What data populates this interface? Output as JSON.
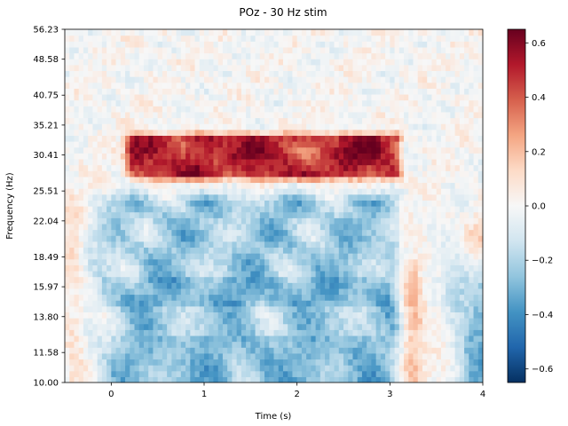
{
  "chart_data": {
    "type": "heatmap",
    "title": "POz - 30 Hz stim",
    "xlabel": "Time (s)",
    "ylabel": "Frequency (Hz)",
    "x_range": [
      -0.5,
      4.0
    ],
    "y_range": [
      10.0,
      56.23
    ],
    "y_scale": "log",
    "x_ticks": [
      0,
      1,
      2,
      3,
      4
    ],
    "x_tick_labels": [
      "0",
      "1",
      "2",
      "3",
      "4"
    ],
    "y_ticks": [
      10.0,
      11.58,
      13.8,
      15.97,
      18.49,
      22.04,
      25.51,
      30.41,
      35.21,
      40.75,
      48.58,
      56.23
    ],
    "y_tick_labels": [
      "10.00",
      "11.58",
      "13.80",
      "15.97",
      "18.49",
      "22.04",
      "25.51",
      "30.41",
      "35.21",
      "40.75",
      "48.58",
      "56.23"
    ],
    "colormap": "RdBu_r",
    "vmin": -0.65,
    "vmax": 0.65,
    "colorbar_ticks": [
      -0.6,
      -0.4,
      -0.2,
      0.0,
      0.2,
      0.4,
      0.6
    ],
    "colorbar_tick_labels": [
      "−0.6",
      "−0.4",
      "−0.2",
      "0.0",
      "0.2",
      "0.4",
      "0.6"
    ],
    "features": [
      {
        "label": "stimulus band",
        "t_start": 0.2,
        "t_end": 3.1,
        "f_low": 27.5,
        "f_high": 33.5,
        "value": 0.58
      },
      {
        "label": "low-frequency suppression",
        "t_start": 0.0,
        "t_end": 3.0,
        "f_low": 10.0,
        "f_high": 25.5,
        "value": -0.3
      },
      {
        "label": "post-stim beta rebound",
        "t_start": 3.1,
        "t_end": 3.4,
        "f_low": 10.0,
        "f_high": 18.0,
        "value": 0.2
      }
    ],
    "grid": false
  }
}
